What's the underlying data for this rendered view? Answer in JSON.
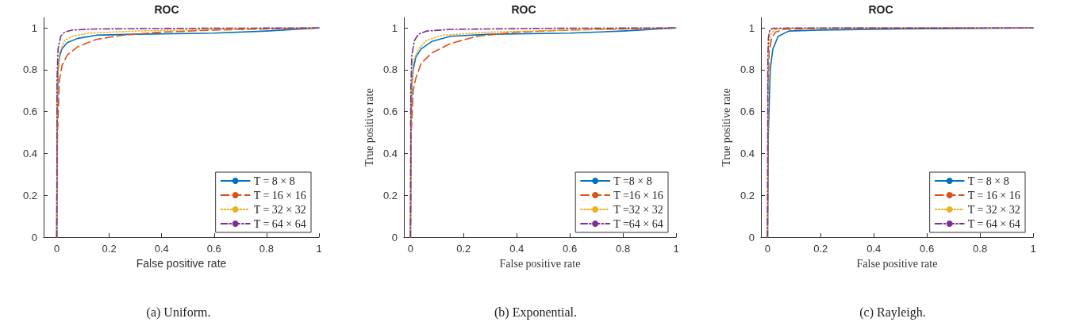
{
  "chart_data": [
    {
      "type": "line",
      "title": "ROC",
      "xlabel": "False positive rate",
      "annotations": [
        "(a) Uniform."
      ],
      "xlim": [
        -0.05,
        1
      ],
      "ylim": [
        0,
        1.05
      ],
      "xticks": [
        0,
        0.2,
        0.4,
        0.6,
        0.8,
        1
      ],
      "yticks": [
        0,
        0.2,
        0.4,
        0.6,
        0.8,
        1
      ],
      "grid": false,
      "legend": "bottom right",
      "marker": "none",
      "series": [
        {
          "name": "T = 8 × 8",
          "color": "#0072bd",
          "line_style": "solid",
          "x": [
            0,
            0.002,
            0.005,
            0.01,
            0.02,
            0.04,
            0.08,
            0.15,
            0.3,
            0.6,
            0.8,
            1
          ],
          "values": [
            0,
            0.6,
            0.8,
            0.86,
            0.9,
            0.93,
            0.95,
            0.965,
            0.97,
            0.975,
            0.985,
            1
          ]
        },
        {
          "name": "T = 16 × 16",
          "color": "#d95319",
          "line_style": "dashed",
          "x": [
            0,
            0.003,
            0.01,
            0.02,
            0.04,
            0.08,
            0.15,
            0.25,
            0.4,
            0.6,
            1
          ],
          "values": [
            0,
            0.5,
            0.75,
            0.82,
            0.87,
            0.91,
            0.945,
            0.965,
            0.98,
            0.99,
            1
          ]
        },
        {
          "name": "T = 32 × 32",
          "color": "#edb120",
          "line_style": "dotted",
          "x": [
            0,
            0.002,
            0.01,
            0.03,
            0.06,
            0.12,
            0.3,
            0.6,
            1
          ],
          "values": [
            0,
            0.7,
            0.88,
            0.94,
            0.96,
            0.975,
            0.985,
            0.993,
            1
          ]
        },
        {
          "name": "T = 64 × 64",
          "color": "#7e2f8e",
          "line_style": "dashdot",
          "x": [
            0,
            0.001,
            0.005,
            0.015,
            0.03,
            0.06,
            0.15,
            0.5,
            1
          ],
          "values": [
            0,
            0.75,
            0.9,
            0.96,
            0.98,
            0.99,
            0.995,
            0.998,
            1
          ]
        }
      ]
    },
    {
      "type": "line",
      "title": "ROC",
      "xlabel": "False positive rate",
      "ylabel": "True positive rate",
      "annotations": [
        "(b) Exponential."
      ],
      "xlim": [
        -0.025,
        1
      ],
      "ylim": [
        0,
        1.05
      ],
      "xticks": [
        0,
        0.2,
        0.4,
        0.6,
        0.8,
        1
      ],
      "yticks": [
        0,
        0.2,
        0.4,
        0.6,
        0.8,
        1
      ],
      "grid": false,
      "legend": "bottom right",
      "marker": "none",
      "series": [
        {
          "name": "T =8 × 8",
          "color": "#0072bd",
          "line_style": "solid",
          "x": [
            0,
            0.002,
            0.005,
            0.01,
            0.02,
            0.04,
            0.08,
            0.15,
            0.3,
            0.6,
            0.8,
            1
          ],
          "values": [
            0,
            0.55,
            0.72,
            0.8,
            0.86,
            0.9,
            0.935,
            0.96,
            0.97,
            0.975,
            0.985,
            1
          ]
        },
        {
          "name": "T =16 × 16",
          "color": "#d95319",
          "line_style": "dashed",
          "x": [
            0,
            0.003,
            0.01,
            0.02,
            0.04,
            0.08,
            0.15,
            0.25,
            0.4,
            0.6,
            1
          ],
          "values": [
            0,
            0.5,
            0.7,
            0.76,
            0.83,
            0.88,
            0.925,
            0.96,
            0.98,
            0.99,
            1
          ]
        },
        {
          "name": "T =32 × 32",
          "color": "#edb120",
          "line_style": "dotted",
          "x": [
            0,
            0.002,
            0.01,
            0.03,
            0.06,
            0.12,
            0.3,
            0.6,
            1
          ],
          "values": [
            0,
            0.65,
            0.84,
            0.9,
            0.94,
            0.965,
            0.98,
            0.99,
            1
          ]
        },
        {
          "name": "T =64 × 64",
          "color": "#7e2f8e",
          "line_style": "dashdot",
          "x": [
            0,
            0.001,
            0.005,
            0.015,
            0.03,
            0.06,
            0.15,
            0.5,
            1
          ],
          "values": [
            0,
            0.7,
            0.87,
            0.94,
            0.97,
            0.985,
            0.993,
            0.998,
            1
          ]
        }
      ]
    },
    {
      "type": "line",
      "title": "ROC",
      "xlabel": "False positive rate",
      "ylabel": "True positive rate",
      "annotations": [
        "(c) Rayleigh."
      ],
      "xlim": [
        -0.025,
        1
      ],
      "ylim": [
        0,
        1.05
      ],
      "xticks": [
        0,
        0.2,
        0.4,
        0.6,
        0.8,
        1
      ],
      "yticks": [
        0,
        0.2,
        0.4,
        0.6,
        0.8,
        1
      ],
      "grid": false,
      "legend": "bottom right",
      "marker": "none",
      "series": [
        {
          "name": "T = 8 × 8",
          "color": "#0072bd",
          "line_style": "solid",
          "x": [
            0,
            0.003,
            0.01,
            0.02,
            0.04,
            0.08,
            0.2,
            0.5,
            1
          ],
          "values": [
            0,
            0.5,
            0.8,
            0.9,
            0.96,
            0.985,
            0.99,
            0.995,
            1
          ]
        },
        {
          "name": "T = 16 × 16",
          "color": "#d95319",
          "line_style": "dashed",
          "x": [
            0,
            0.002,
            0.006,
            0.015,
            0.03,
            0.06,
            0.2,
            1
          ],
          "values": [
            0,
            0.7,
            0.88,
            0.95,
            0.98,
            0.993,
            0.998,
            1
          ]
        },
        {
          "name": "T = 32 × 32",
          "color": "#edb120",
          "line_style": "dotted",
          "x": [
            0,
            0.002,
            0.005,
            0.012,
            0.025,
            0.05,
            0.2,
            1
          ],
          "values": [
            0,
            0.8,
            0.92,
            0.97,
            0.99,
            0.997,
            0.999,
            1
          ]
        },
        {
          "name": "T = 64 × 64",
          "color": "#7e2f8e",
          "line_style": "dashdot",
          "x": [
            0,
            0.001,
            0.003,
            0.008,
            0.02,
            0.1,
            1
          ],
          "values": [
            0,
            0.85,
            0.95,
            0.99,
            0.998,
            1,
            1
          ]
        }
      ]
    }
  ]
}
